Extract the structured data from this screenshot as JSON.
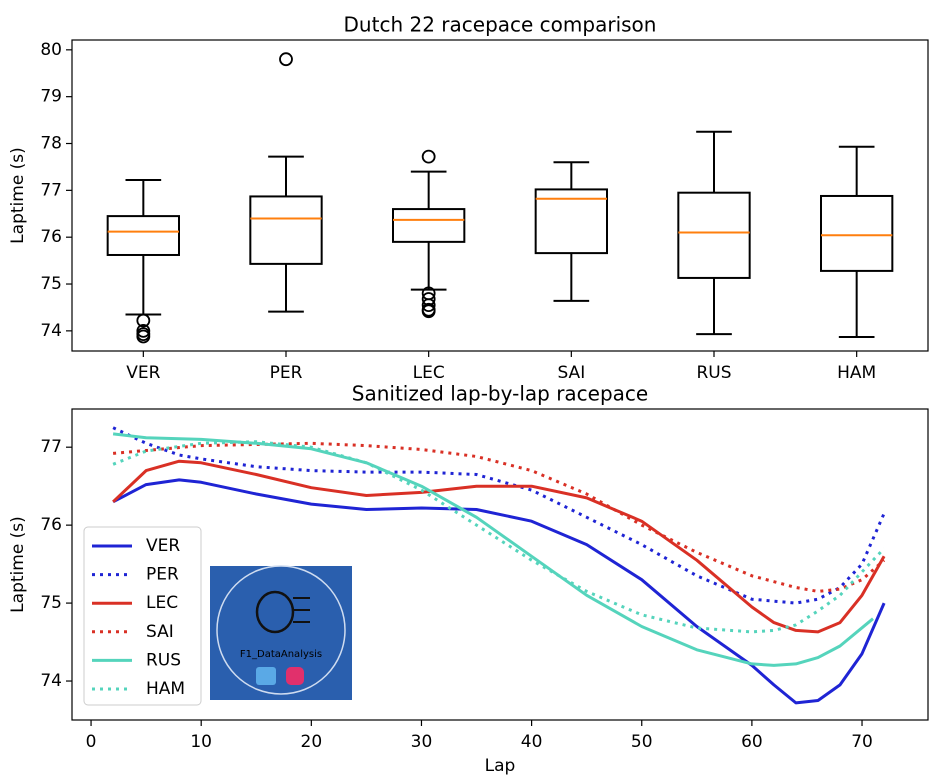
{
  "chart_data": [
    {
      "type": "box",
      "title": "Dutch 22 racepace comparison",
      "ylabel": "Laptime (s)",
      "categories": [
        "VER",
        "PER",
        "LEC",
        "SAI",
        "RUS",
        "HAM"
      ],
      "boxes": [
        {
          "whislo": 74.35,
          "q1": 75.62,
          "med": 76.12,
          "q3": 76.45,
          "whishi": 77.22,
          "fliers": [
            74.22,
            74.0,
            73.93,
            73.88
          ]
        },
        {
          "whislo": 74.41,
          "q1": 75.43,
          "med": 76.4,
          "q3": 76.87,
          "whishi": 77.72,
          "fliers": [
            79.8
          ]
        },
        {
          "whislo": 74.88,
          "q1": 75.9,
          "med": 76.37,
          "q3": 76.6,
          "whishi": 77.4,
          "fliers": [
            77.72,
            74.8,
            74.68,
            74.55,
            74.45,
            74.42
          ]
        },
        {
          "whislo": 74.64,
          "q1": 75.66,
          "med": 76.82,
          "q3": 77.02,
          "whishi": 77.6,
          "fliers": []
        },
        {
          "whislo": 73.93,
          "q1": 75.13,
          "med": 76.1,
          "q3": 76.95,
          "whishi": 78.25,
          "fliers": []
        },
        {
          "whislo": 73.87,
          "q1": 75.28,
          "med": 76.04,
          "q3": 76.88,
          "whishi": 77.93,
          "fliers": []
        }
      ],
      "color": "#000000",
      "median_color": "#ff7f0e",
      "ylim": [
        73.57,
        80.21
      ],
      "yticks": [
        74,
        75,
        76,
        77,
        78,
        79,
        80
      ]
    },
    {
      "type": "line",
      "title": "Sanitized lap-by-lap racepace",
      "ylabel": "Laptime (s)",
      "xlabel": "Lap",
      "series": [
        {
          "name": "VER",
          "color": "#1f24d4",
          "dash": false,
          "x": [
            2,
            5,
            8,
            10,
            15,
            20,
            25,
            30,
            35,
            40,
            45,
            50,
            55,
            60,
            62,
            64,
            66,
            68,
            70,
            72
          ],
          "values": [
            76.3,
            76.52,
            76.58,
            76.55,
            76.4,
            76.27,
            76.2,
            76.22,
            76.2,
            76.05,
            75.75,
            75.3,
            74.7,
            74.2,
            73.95,
            73.72,
            73.75,
            73.95,
            74.35,
            75.0
          ]
        },
        {
          "name": "PER",
          "color": "#1f24d4",
          "dash": true,
          "x": [
            2,
            5,
            8,
            10,
            15,
            20,
            25,
            30,
            35,
            40,
            45,
            50,
            55,
            60,
            64,
            66,
            68,
            70,
            72
          ],
          "values": [
            77.25,
            77.05,
            76.9,
            76.85,
            76.75,
            76.7,
            76.68,
            76.68,
            76.65,
            76.45,
            76.1,
            75.75,
            75.35,
            75.05,
            75.0,
            75.05,
            75.2,
            75.5,
            76.15
          ]
        },
        {
          "name": "LEC",
          "color": "#d93025",
          "dash": false,
          "x": [
            2,
            5,
            8,
            10,
            15,
            20,
            25,
            30,
            35,
            40,
            45,
            50,
            55,
            60,
            62,
            64,
            66,
            68,
            70,
            72
          ],
          "values": [
            76.3,
            76.7,
            76.82,
            76.8,
            76.65,
            76.48,
            76.38,
            76.42,
            76.5,
            76.5,
            76.35,
            76.05,
            75.55,
            74.95,
            74.75,
            74.65,
            74.63,
            74.75,
            75.1,
            75.6
          ]
        },
        {
          "name": "SAI",
          "color": "#d93025",
          "dash": true,
          "x": [
            2,
            10,
            20,
            25,
            30,
            35,
            40,
            45,
            50,
            55,
            60,
            64,
            66,
            68,
            70,
            72
          ],
          "values": [
            76.92,
            77.02,
            77.05,
            77.02,
            76.97,
            76.88,
            76.7,
            76.4,
            76.0,
            75.65,
            75.35,
            75.2,
            75.15,
            75.18,
            75.3,
            75.55
          ]
        },
        {
          "name": "RUS",
          "color": "#55d4bc",
          "dash": false,
          "x": [
            2,
            5,
            10,
            15,
            20,
            25,
            30,
            35,
            40,
            45,
            50,
            55,
            60,
            62,
            64,
            66,
            68,
            71
          ],
          "values": [
            77.17,
            77.12,
            77.1,
            77.05,
            76.98,
            76.8,
            76.5,
            76.1,
            75.6,
            75.1,
            74.7,
            74.4,
            74.22,
            74.2,
            74.22,
            74.3,
            74.45,
            74.8
          ]
        },
        {
          "name": "HAM",
          "color": "#55d4bc",
          "dash": true,
          "x": [
            2,
            5,
            10,
            15,
            20,
            25,
            30,
            35,
            40,
            45,
            50,
            55,
            60,
            62,
            64,
            66,
            68,
            70,
            72
          ],
          "values": [
            76.78,
            76.95,
            77.05,
            77.07,
            77.0,
            76.8,
            76.45,
            76.0,
            75.55,
            75.15,
            74.85,
            74.68,
            74.63,
            74.65,
            74.72,
            74.9,
            75.1,
            75.4,
            75.7
          ]
        }
      ],
      "xlim": [
        -1.73,
        75.99
      ],
      "xticks": [
        0,
        10,
        20,
        30,
        40,
        50,
        60,
        70
      ],
      "ylim": [
        73.5,
        77.49
      ],
      "yticks": [
        74,
        75,
        76,
        77
      ],
      "legend": "lower left",
      "watermark": "F1_DataAnalysis"
    }
  ]
}
